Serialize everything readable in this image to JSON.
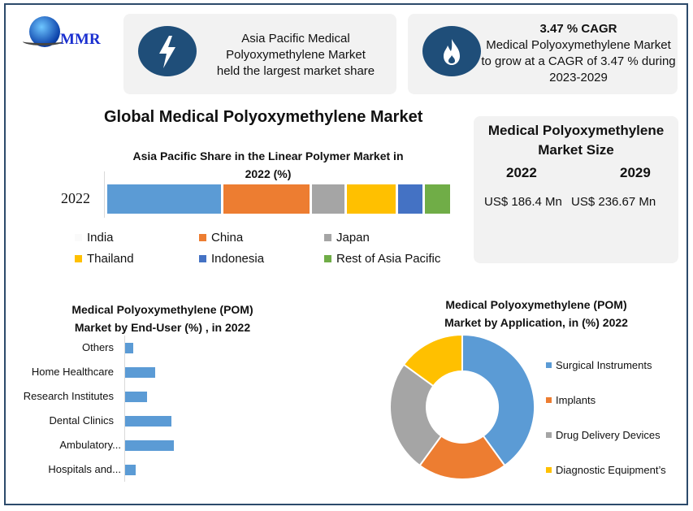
{
  "logo": {
    "text": "MMR"
  },
  "card1": {
    "text_lines": [
      "Asia Pacific Medical",
      "Polyoxymethylene Market",
      "held the largest market share"
    ],
    "icon": "lightning-icon"
  },
  "card2": {
    "title": "3.47 % CAGR",
    "text_lines": [
      "Medical Polyoxymethylene Market",
      "to grow at a CAGR of 3.47 % during",
      "2023-2029"
    ],
    "icon": "flame-icon"
  },
  "main_title": "Global Medical Polyoxymethylene Market",
  "size_card": {
    "title_lines": [
      "Medical Polyoxymethylene",
      "Market Size"
    ],
    "years": [
      "2022",
      "2029"
    ],
    "values": [
      "US$ 186.4 Mn",
      "US$ 236.67 Mn"
    ]
  },
  "colors": {
    "blue": "#5b9bd5",
    "orange": "#ed7d31",
    "gray": "#a5a5a5",
    "yellow": "#ffc000",
    "darkblue": "#4472c4",
    "green": "#70ad47",
    "accent": "#1f4e79"
  },
  "chart_data": [
    {
      "type": "bar",
      "orientation": "horizontal-stacked",
      "title": "Asia Pacific Share in the Linear Polymer Market in 2022 (%)",
      "title_lines": [
        "Asia Pacific Share in the Linear Polymer Market in",
        "2022 (%)"
      ],
      "categories": [
        "2022"
      ],
      "series": [
        {
          "name": "India",
          "values": [
            34
          ],
          "color": "#5b9bd5"
        },
        {
          "name": "China",
          "values": [
            26
          ],
          "color": "#ed7d31"
        },
        {
          "name": "Japan",
          "values": [
            10
          ],
          "color": "#a5a5a5"
        },
        {
          "name": "Thailand",
          "values": [
            15
          ],
          "color": "#ffc000"
        },
        {
          "name": "Indonesia",
          "values": [
            8
          ],
          "color": "#4472c4"
        },
        {
          "name": "Rest of Asia Pacific",
          "values": [
            8
          ],
          "color": "#70ad47"
        }
      ],
      "legend": "bottom"
    },
    {
      "type": "bar",
      "orientation": "horizontal",
      "title_lines": [
        "Medical Polyoxymethylene (POM)",
        "Market by End-User (%) , in 2022"
      ],
      "categories": [
        "Others",
        "Home Healthcare",
        "Research Institutes",
        "Dental Clinics",
        "Ambulatory...",
        "Hospitals and..."
      ],
      "values": [
        3,
        11,
        8,
        17,
        18,
        4
      ],
      "color": "#5b9bd5"
    },
    {
      "type": "pie",
      "variant": "donut",
      "title_lines": [
        "Medical Polyoxymethylene (POM)",
        "Market by Application, in (%) 2022"
      ],
      "categories": [
        "Surgical Instruments",
        "Implants",
        "Drug Delivery Devices",
        "Diagnostic Equipment’s"
      ],
      "values": [
        40,
        20,
        25,
        15
      ],
      "colors": [
        "#5b9bd5",
        "#ed7d31",
        "#a5a5a5",
        "#ffc000"
      ],
      "legend": "right"
    }
  ]
}
